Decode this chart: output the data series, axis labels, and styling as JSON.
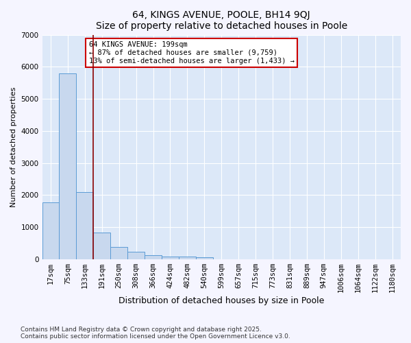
{
  "title": "64, KINGS AVENUE, POOLE, BH14 9QJ",
  "subtitle": "Size of property relative to detached houses in Poole",
  "xlabel": "Distribution of detached houses by size in Poole",
  "ylabel": "Number of detached properties",
  "categories": [
    "17sqm",
    "75sqm",
    "133sqm",
    "191sqm",
    "250sqm",
    "308sqm",
    "366sqm",
    "424sqm",
    "482sqm",
    "540sqm",
    "599sqm",
    "657sqm",
    "715sqm",
    "773sqm",
    "831sqm",
    "889sqm",
    "947sqm",
    "1006sqm",
    "1064sqm",
    "1122sqm",
    "1180sqm"
  ],
  "values": [
    1780,
    5800,
    2100,
    830,
    380,
    230,
    120,
    80,
    80,
    50,
    0,
    0,
    0,
    0,
    0,
    0,
    0,
    0,
    0,
    0,
    0
  ],
  "bar_color": "#c8d8ee",
  "bar_edge_color": "#5b9bd5",
  "bar_edge_width": 0.7,
  "annotation_title": "64 KINGS AVENUE: 199sqm",
  "annotation_line1": "← 87% of detached houses are smaller (9,759)",
  "annotation_line2": "13% of semi-detached houses are larger (1,433) →",
  "annotation_box_color": "#ffffff",
  "annotation_border_color": "#cc0000",
  "vline_color": "#8b0000",
  "ylim": [
    0,
    7000
  ],
  "yticks": [
    0,
    1000,
    2000,
    3000,
    4000,
    5000,
    6000,
    7000
  ],
  "plot_bg_color": "#dce8f8",
  "fig_bg_color": "#f5f5ff",
  "grid_color": "#ffffff",
  "footnote1": "Contains HM Land Registry data © Crown copyright and database right 2025.",
  "footnote2": "Contains public sector information licensed under the Open Government Licence v3.0.",
  "vline_x": 2.5,
  "title_fontsize": 10,
  "subtitle_fontsize": 9,
  "ylabel_fontsize": 8,
  "xlabel_fontsize": 9,
  "tick_fontsize": 7.5,
  "annot_fontsize": 7.5
}
